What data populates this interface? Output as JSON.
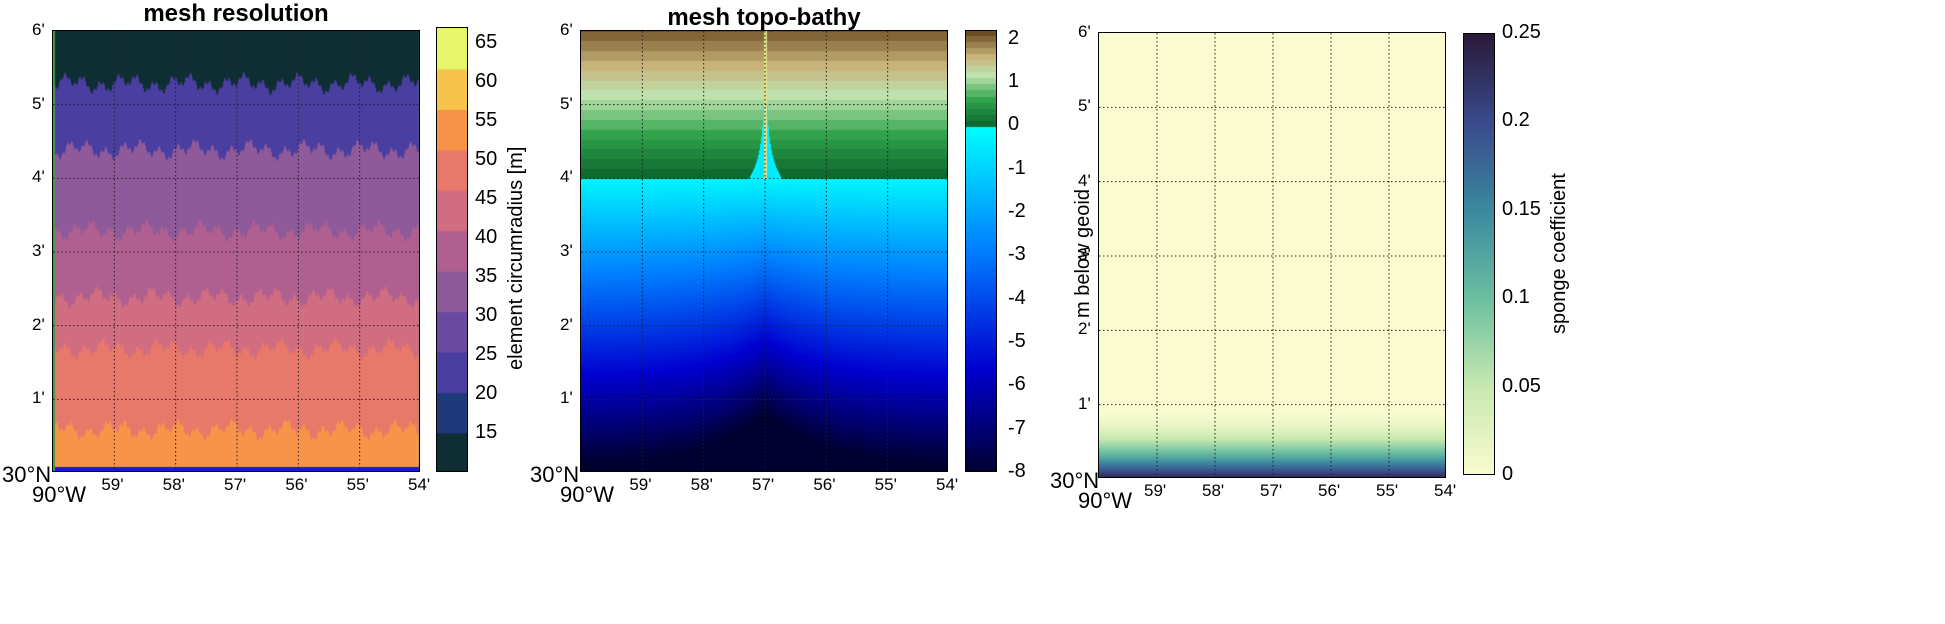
{
  "chart_data": [
    {
      "type": "heatmap",
      "title": "mesh resolution",
      "x_ticks": [
        "59'",
        "58'",
        "57'",
        "56'",
        "55'",
        "54'"
      ],
      "x_origin_label": "90°W",
      "y_ticks": [
        "1'",
        "2'",
        "3'",
        "4'",
        "5'",
        "6'"
      ],
      "y_origin_label": "30°N",
      "colorbar": {
        "label": "element circumradius [m]",
        "range": [
          10,
          67
        ],
        "ticks": [
          15,
          20,
          25,
          30,
          35,
          40,
          45,
          50,
          55,
          60,
          65
        ],
        "colors": [
          "#0f2e33",
          "#1f3a7a",
          "#4a3ea0",
          "#6a4aa0",
          "#8f5a9a",
          "#b06090",
          "#d06d80",
          "#e8786a",
          "#f7944a",
          "#f6c44a",
          "#e7f56a"
        ]
      },
      "bands_bottom_to_top": [
        {
          "y_from_min": 0,
          "y_to_min": 0.05,
          "radius_m": 19
        },
        {
          "y_from_min": 0.05,
          "y_to_min": 0.6,
          "radius_m": 56
        },
        {
          "y_from_min": 0.6,
          "y_to_min": 1.7,
          "radius_m": 47
        },
        {
          "y_from_min": 1.7,
          "y_to_min": 2.4,
          "radius_m": 42
        },
        {
          "y_from_min": 2.4,
          "y_to_min": 3.3,
          "radius_m": 38
        },
        {
          "y_from_min": 3.3,
          "y_to_min": 4.4,
          "radius_m": 31
        },
        {
          "y_from_min": 4.4,
          "y_to_min": 5.3,
          "radius_m": 21
        },
        {
          "y_from_min": 5.3,
          "y_to_min": 6.0,
          "radius_m": 14
        }
      ]
    },
    {
      "type": "heatmap",
      "title": "mesh topo-bathy",
      "x_ticks": [
        "59'",
        "58'",
        "57'",
        "56'",
        "55'",
        "54'"
      ],
      "x_origin_label": "90°W",
      "y_ticks": [
        "1'",
        "2'",
        "3'",
        "4'",
        "5'",
        "6'"
      ],
      "y_origin_label": "30°N",
      "colorbar": {
        "label": "m below geoid",
        "range": [
          -8,
          2.2
        ],
        "ticks": [
          2,
          1,
          0,
          -1,
          -2,
          -3,
          -4,
          -5,
          -6,
          -7,
          -8
        ]
      },
      "shoreline_y_min": 4.0,
      "channel_x_min": 57
    },
    {
      "type": "heatmap",
      "title": "",
      "x_ticks": [
        "59'",
        "58'",
        "57'",
        "56'",
        "55'",
        "54'"
      ],
      "x_origin_label": "90°W",
      "y_ticks": [
        "1'",
        "2'",
        "3'",
        "4'",
        "5'",
        "6'"
      ],
      "y_origin_label": "30°N",
      "colorbar": {
        "label": "sponge coefficient",
        "range": [
          0,
          0.25
        ],
        "ticks": [
          0.25,
          0.2,
          0.15,
          0.1,
          0.05,
          0
        ]
      },
      "sponge_zone_y_min": [
        0,
        1
      ]
    }
  ]
}
